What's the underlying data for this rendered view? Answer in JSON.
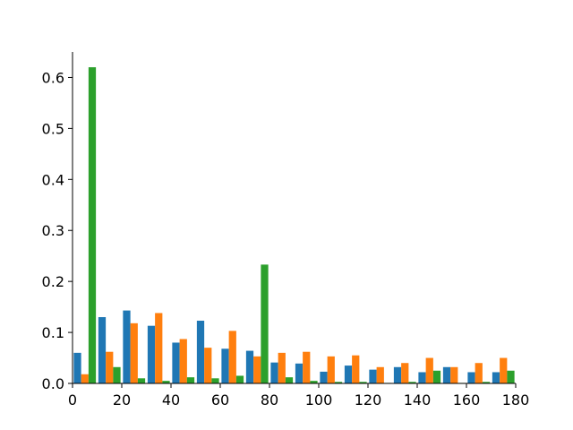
{
  "chart_data": {
    "type": "histogram",
    "bins": [
      0,
      10,
      20,
      30,
      40,
      50,
      60,
      70,
      80,
      90,
      100,
      110,
      120,
      130,
      140,
      150,
      160,
      170,
      180
    ],
    "series": [
      {
        "color": "#1f77b4",
        "values": [
          0.06,
          0.13,
          0.143,
          0.113,
          0.08,
          0.123,
          0.068,
          0.064,
          0.041,
          0.039,
          0.023,
          0.035,
          0.027,
          0.032,
          0.022,
          0.032,
          0.022,
          0.022
        ]
      },
      {
        "color": "#ff7f0e",
        "values": [
          0.018,
          0.062,
          0.118,
          0.138,
          0.087,
          0.07,
          0.103,
          0.053,
          0.06,
          0.062,
          0.053,
          0.055,
          0.032,
          0.04,
          0.05,
          0.032,
          0.04,
          0.05
        ]
      },
      {
        "color": "#2ca02c",
        "values": [
          0.62,
          0.032,
          0.01,
          0.005,
          0.012,
          0.01,
          0.015,
          0.233,
          0.012,
          0.005,
          0.003,
          0.003,
          0.001,
          0.003,
          0.025,
          0.001,
          0.003,
          0.025
        ]
      }
    ],
    "xlim": [
      0,
      180
    ],
    "xticks": [
      0,
      20,
      40,
      60,
      80,
      100,
      120,
      140,
      160,
      180
    ],
    "ylim": [
      0,
      0.65
    ],
    "yticks": [
      {
        "value": 0,
        "label": "0.0"
      },
      0.1,
      0.2,
      0.3,
      0.4,
      0.5,
      0.6
    ]
  }
}
